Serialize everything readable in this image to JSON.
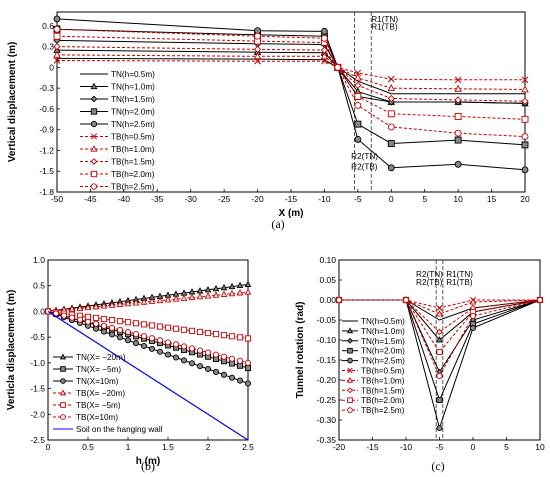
{
  "chart_data": [
    {
      "type": "line",
      "panel_label": "(a)",
      "xlabel": "X (m)",
      "ylabel": "Vertical displacement (m)",
      "xlim": [
        -50,
        20
      ],
      "ylim": [
        -1.8,
        0.8
      ],
      "xticks": [
        -50,
        -45,
        -40,
        -35,
        -30,
        -25,
        -20,
        -15,
        -10,
        -5,
        0,
        5,
        10,
        15,
        20
      ],
      "yticks": [
        -1.8,
        -1.5,
        -1.2,
        -0.9,
        -0.6,
        -0.3,
        0,
        0.3,
        0.6,
        0.8
      ],
      "ytick_labels": [
        "-1.8",
        "-1.5",
        "-1.2",
        "-0.9",
        "-0.6",
        "-0.3",
        "0",
        "0.3",
        "0.6",
        ""
      ],
      "x": [
        -50,
        -20,
        -10,
        -8,
        -5,
        0,
        10,
        20
      ],
      "legend_position": "left",
      "series": [
        {
          "name": "TN(h=0.5m)",
          "color": "#000000",
          "dash": "solid",
          "marker": "none",
          "values": [
            0.13,
            0.12,
            0.11,
            0.0,
            -0.2,
            -0.38,
            -0.38,
            -0.38
          ]
        },
        {
          "name": "TN(h=1.0m)",
          "color": "#000000",
          "dash": "solid",
          "marker": "triangle",
          "values": [
            0.25,
            0.22,
            0.21,
            0.0,
            -0.35,
            -0.5,
            -0.5,
            -0.52
          ]
        },
        {
          "name": "TN(h=1.5m)",
          "color": "#000000",
          "dash": "solid",
          "marker": "diamond",
          "values": [
            0.39,
            0.34,
            0.33,
            0.0,
            -0.42,
            -0.5,
            -0.5,
            -0.52
          ]
        },
        {
          "name": "TN(h=2.0m)",
          "color": "#000000",
          "dash": "solid",
          "marker": "square",
          "values": [
            0.55,
            0.47,
            0.45,
            0.0,
            -0.82,
            -1.1,
            -1.05,
            -1.12
          ]
        },
        {
          "name": "TN(h=2.5m)",
          "color": "#000000",
          "dash": "solid",
          "marker": "circle",
          "values": [
            0.7,
            0.53,
            0.52,
            0.0,
            -1.04,
            -1.45,
            -1.4,
            -1.48
          ]
        },
        {
          "name": "TB(h=0.5m)",
          "color": "#cc0000",
          "dash": "dashed",
          "marker": "x",
          "values": [
            0.1,
            0.09,
            0.09,
            0.0,
            -0.08,
            -0.17,
            -0.18,
            -0.18
          ]
        },
        {
          "name": "TB(h=1.0m)",
          "color": "#cc0000",
          "dash": "dashed",
          "marker": "triangle-open",
          "values": [
            0.18,
            0.16,
            0.16,
            0.0,
            -0.15,
            -0.3,
            -0.31,
            -0.32
          ]
        },
        {
          "name": "TB(h=1.5m)",
          "color": "#cc0000",
          "dash": "dashed",
          "marker": "diamond-open",
          "values": [
            0.3,
            0.26,
            0.25,
            0.0,
            -0.26,
            -0.45,
            -0.47,
            -0.49
          ]
        },
        {
          "name": "TB(h=2.0m)",
          "color": "#cc0000",
          "dash": "dashed",
          "marker": "square-open",
          "values": [
            0.45,
            0.38,
            0.36,
            0.0,
            -0.42,
            -0.67,
            -0.71,
            -0.75
          ]
        },
        {
          "name": "TB(h=2.5m)",
          "color": "#cc0000",
          "dash": "dashed",
          "marker": "circle-open",
          "values": [
            0.55,
            0.45,
            0.42,
            0.0,
            -0.55,
            -0.86,
            -0.95,
            -1.0
          ]
        }
      ],
      "annotations": [
        {
          "text": "R1(TN)",
          "x": -3,
          "y": 0.7
        },
        {
          "text": "R1(TB)",
          "x": -3,
          "y": 0.59
        },
        {
          "text": "R2(TN)",
          "x": -6,
          "y": -1.28
        },
        {
          "text": "R2(TB)",
          "x": -6,
          "y": -1.43
        }
      ],
      "vlines": [
        -5.5,
        -3
      ]
    },
    {
      "type": "line",
      "panel_label": "(b)",
      "xlabel": "h (m)",
      "ylabel": "Verticla displacement (m)",
      "xlim": [
        0,
        2.5
      ],
      "ylim": [
        -2.5,
        1.0
      ],
      "xticks": [
        0,
        0.5,
        1,
        1.5,
        2,
        2.5
      ],
      "yticks": [
        -2.5,
        -2.0,
        -1.5,
        -1.0,
        -0.5,
        0.0,
        0.5,
        1.0
      ],
      "xtick_labels": [
        "0",
        "0.5",
        "1",
        "1.5",
        "2",
        "2.5"
      ],
      "ytick_labels": [
        "-2.5",
        "-2.0",
        "-1.5",
        "-1.0",
        "-0.5",
        "0.0",
        "0.5",
        "1.0"
      ],
      "x": [
        0,
        0.1,
        0.2,
        0.3,
        0.4,
        0.5,
        0.6,
        0.7,
        0.8,
        0.9,
        1.0,
        1.1,
        1.2,
        1.3,
        1.4,
        1.5,
        1.6,
        1.7,
        1.8,
        1.9,
        2.0,
        2.1,
        2.2,
        2.3,
        2.4,
        2.5
      ],
      "legend_position": "bottom-left",
      "series": [
        {
          "name": "TN(X= −20m)",
          "color": "#000000",
          "dash": "solid",
          "marker": "triangle",
          "slope": 0.21
        },
        {
          "name": "TN(X= −5m)",
          "color": "#000000",
          "dash": "solid",
          "marker": "square",
          "slope": -0.44
        },
        {
          "name": "TN(X=10m)",
          "color": "#000000",
          "dash": "solid",
          "marker": "circle",
          "slope": -0.56
        },
        {
          "name": "TB(X= −20m)",
          "color": "#cc0000",
          "dash": "dashed",
          "marker": "triangle-open",
          "slope": 0.15
        },
        {
          "name": "TB(X= −5m)",
          "color": "#cc0000",
          "dash": "dashed",
          "marker": "square-open",
          "slope": -0.21
        },
        {
          "name": "TB(X=10m)",
          "color": "#cc0000",
          "dash": "dashed",
          "marker": "circle-open",
          "slope": -0.4
        },
        {
          "name": "Soil on the hanging wall",
          "color": "#0000ee",
          "dash": "solid",
          "marker": "none",
          "slope": -1.0
        }
      ]
    },
    {
      "type": "line",
      "panel_label": "(c)",
      "xlabel": "",
      "ylabel": "Tunnel rotation (rad)",
      "xlim": [
        -20,
        10
      ],
      "ylim": [
        -0.35,
        0.1
      ],
      "xticks": [
        -20,
        -15,
        -10,
        -5,
        0,
        5,
        10
      ],
      "yticks": [
        -0.35,
        -0.3,
        -0.25,
        -0.2,
        -0.15,
        -0.1,
        -0.05,
        0.0,
        0.05,
        0.1
      ],
      "ytick_labels": [
        "-0.35",
        "-0.30",
        "-0.25",
        "-0.20",
        "-0.15",
        "-0.10",
        "-0.05",
        "0.00",
        "0.05",
        "0.10"
      ],
      "x": [
        -20,
        -10,
        -5,
        0,
        10
      ],
      "legend_position": "bottom-left",
      "series": [
        {
          "name": "TN(h=0.5m)",
          "color": "#000000",
          "dash": "solid",
          "marker": "none",
          "values": [
            0,
            0,
            -0.05,
            -0.02,
            0
          ]
        },
        {
          "name": "TN(h=1.0m)",
          "color": "#000000",
          "dash": "solid",
          "marker": "triangle",
          "values": [
            0,
            0,
            -0.1,
            -0.03,
            0
          ]
        },
        {
          "name": "TN(h=1.5m)",
          "color": "#000000",
          "dash": "solid",
          "marker": "diamond",
          "values": [
            0,
            0,
            -0.18,
            -0.05,
            0
          ]
        },
        {
          "name": "TN(h=2.0m)",
          "color": "#000000",
          "dash": "solid",
          "marker": "square",
          "values": [
            0,
            0,
            -0.25,
            -0.06,
            0
          ]
        },
        {
          "name": "TN(h=2.5m)",
          "color": "#000000",
          "dash": "solid",
          "marker": "circle",
          "values": [
            0,
            0,
            -0.32,
            -0.07,
            0
          ]
        },
        {
          "name": "TB(h=0.5m)",
          "color": "#cc0000",
          "dash": "dashed",
          "marker": "x",
          "values": [
            0,
            0,
            -0.02,
            0,
            0
          ]
        },
        {
          "name": "TB(h=1.0m)",
          "color": "#cc0000",
          "dash": "dashed",
          "marker": "triangle-open",
          "values": [
            0,
            0,
            -0.035,
            -0.005,
            0
          ]
        },
        {
          "name": "TB(h=1.5m)",
          "color": "#cc0000",
          "dash": "dashed",
          "marker": "diamond-open",
          "values": [
            0,
            0,
            -0.08,
            -0.02,
            0
          ]
        },
        {
          "name": "TB(h=2.0m)",
          "color": "#cc0000",
          "dash": "dashed",
          "marker": "square-open",
          "values": [
            0,
            0,
            -0.13,
            -0.03,
            0
          ]
        },
        {
          "name": "TB(h=2.5m)",
          "color": "#cc0000",
          "dash": "dashed",
          "marker": "circle-open",
          "values": [
            0,
            0,
            -0.19,
            -0.04,
            0
          ]
        }
      ],
      "annotations": [
        {
          "text": "R2(TN)",
          "x": -8.5,
          "y": 0.065
        },
        {
          "text": "R2(TB)",
          "x": -8.5,
          "y": 0.045
        },
        {
          "text": "R1(TN)",
          "x": -4,
          "y": 0.065
        },
        {
          "text": "R1(TB)",
          "x": -4,
          "y": 0.045
        }
      ],
      "vlines": [
        -5.5,
        -4.5
      ]
    }
  ]
}
